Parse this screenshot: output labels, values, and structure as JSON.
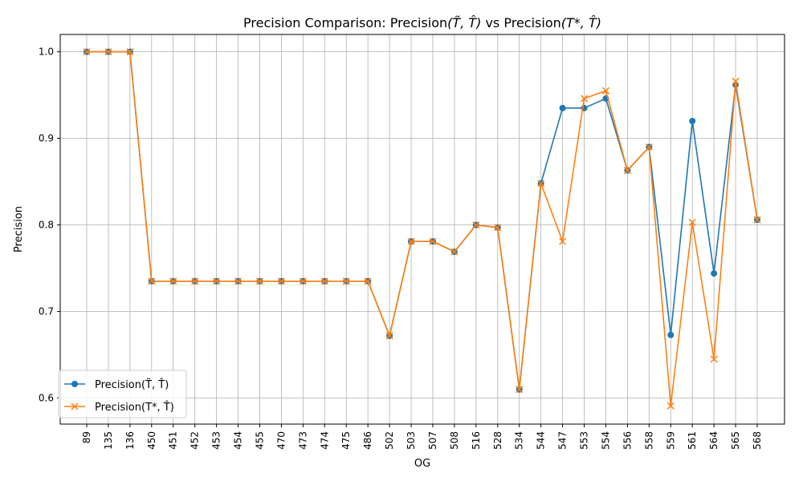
{
  "chart_data": {
    "type": "line",
    "title_parts": {
      "prefix": "Precision Comparison: Precision",
      "args1": "(T̃, T̂)",
      "mid": " vs Precision",
      "args2": "(T*, T̂)"
    },
    "xlabel": "OG",
    "ylabel": "Precision",
    "categories": [
      "89",
      "135",
      "136",
      "450",
      "451",
      "452",
      "453",
      "454",
      "455",
      "470",
      "473",
      "474",
      "475",
      "486",
      "502",
      "503",
      "507",
      "508",
      "516",
      "528",
      "534",
      "544",
      "547",
      "553",
      "554",
      "556",
      "558",
      "559",
      "561",
      "564",
      "565",
      "568"
    ],
    "ylim": [
      0.57,
      1.02
    ],
    "yticks": [
      "0.6",
      "0.7",
      "0.8",
      "0.9",
      "1.0"
    ],
    "grid": true,
    "legend_position": "lower-left",
    "series": [
      {
        "name": "Precision(T̃, T̂)",
        "color": "#1f77b4",
        "marker": "circle",
        "values": [
          1.0,
          1.0,
          1.0,
          0.735,
          0.735,
          0.735,
          0.735,
          0.735,
          0.735,
          0.735,
          0.735,
          0.735,
          0.735,
          0.735,
          0.672,
          0.781,
          0.781,
          0.769,
          0.8,
          0.797,
          0.61,
          0.848,
          0.935,
          0.935,
          0.946,
          0.863,
          0.89,
          0.673,
          0.92,
          0.744,
          0.962,
          0.806
        ]
      },
      {
        "name": "Precision(T*, T̂)",
        "color": "#ff7f0e",
        "marker": "x",
        "values": [
          1.0,
          1.0,
          1.0,
          0.735,
          0.735,
          0.735,
          0.735,
          0.735,
          0.735,
          0.735,
          0.735,
          0.735,
          0.735,
          0.735,
          0.672,
          0.781,
          0.781,
          0.769,
          0.8,
          0.797,
          0.61,
          0.848,
          0.781,
          0.946,
          0.955,
          0.863,
          0.89,
          0.591,
          0.803,
          0.645,
          0.966,
          0.806
        ]
      }
    ]
  }
}
